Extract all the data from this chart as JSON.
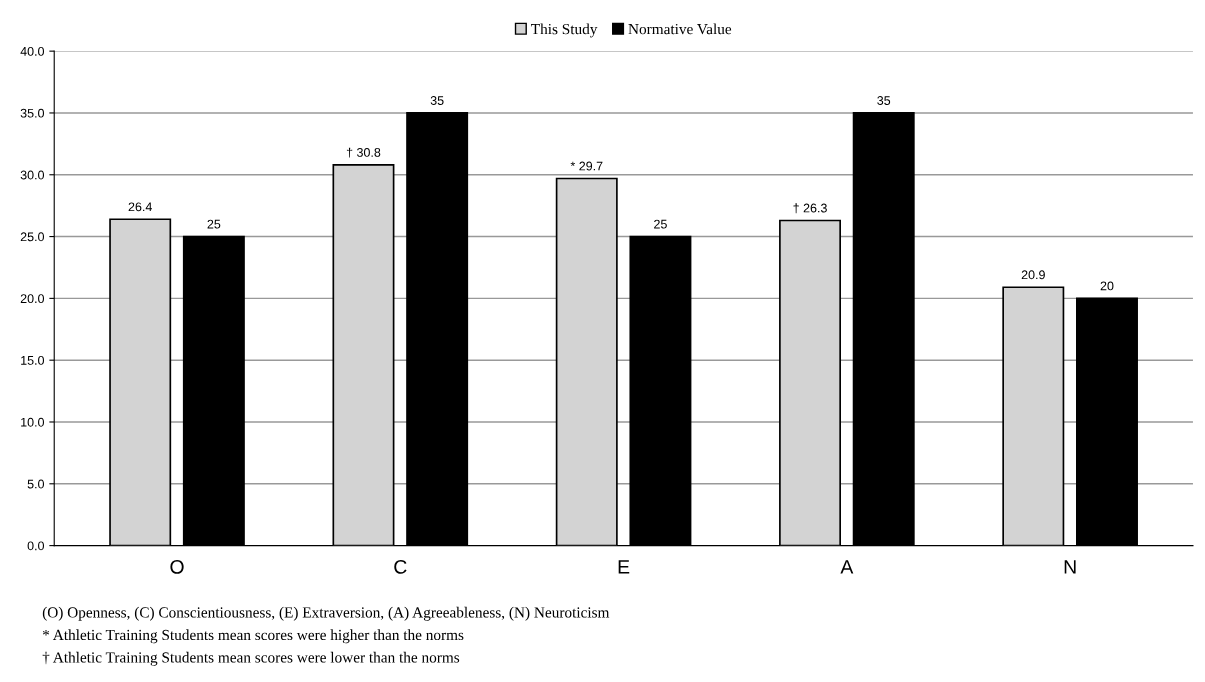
{
  "chart_data": {
    "type": "bar",
    "categories": [
      "O",
      "C",
      "E",
      "A",
      "N"
    ],
    "series": [
      {
        "name": "This Study",
        "color": "#d3d3d3",
        "values": [
          26.4,
          30.8,
          29.7,
          26.3,
          20.9
        ],
        "value_labels": [
          "26.4",
          "† 30.8",
          "* 29.7",
          "† 26.3",
          "20.9"
        ]
      },
      {
        "name": "Normative Value",
        "color": "#000000",
        "values": [
          25,
          35,
          25,
          35,
          20
        ],
        "value_labels": [
          "25",
          "35",
          "25",
          "35",
          "20"
        ]
      }
    ],
    "ylim": [
      0,
      40
    ],
    "yticks": [
      {
        "value": 0,
        "label": "0.0"
      },
      {
        "value": 5,
        "label": "5.0"
      },
      {
        "value": 10,
        "label": "10.0"
      },
      {
        "value": 15,
        "label": "15.0"
      },
      {
        "value": 20,
        "label": "20.0"
      },
      {
        "value": 25,
        "label": "25.0"
      },
      {
        "value": 30,
        "label": "30.0"
      },
      {
        "value": 35,
        "label": "35.0"
      },
      {
        "value": 40,
        "label": "40.0"
      }
    ],
    "grid": "y",
    "legend": "top",
    "annotations": [
      "(O) Openness, (C) Conscientiousness, (E) Extraversion, (A) Agreeableness, (N) Neuroticism",
      "* Athletic Training Students mean scores were higher than the norms",
      "† Athletic Training Students mean scores were lower than the norms"
    ]
  }
}
